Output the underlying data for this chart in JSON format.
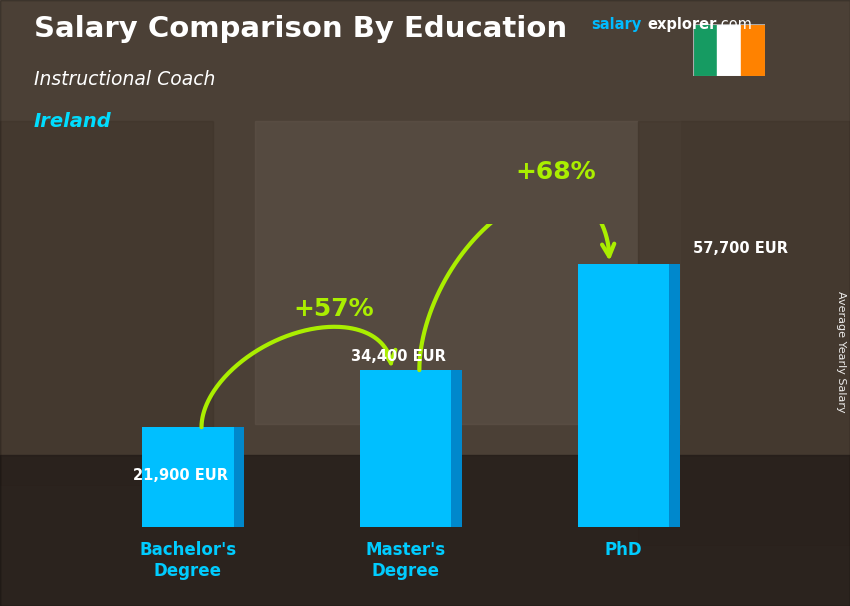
{
  "title": "Salary Comparison By Education",
  "subtitle": "Instructional Coach",
  "country": "Ireland",
  "ylabel": "Average Yearly Salary",
  "categories": [
    "Bachelor's\nDegree",
    "Master's\nDegree",
    "PhD"
  ],
  "values": [
    21900,
    34400,
    57700
  ],
  "value_labels": [
    "21,900 EUR",
    "34,400 EUR",
    "57,700 EUR"
  ],
  "pct_labels": [
    "+57%",
    "+68%"
  ],
  "bar_color_face": "#00BFFF",
  "bar_color_dark": "#0088CC",
  "bar_color_top": "#55DDFF",
  "title_color": "#FFFFFF",
  "subtitle_color": "#FFFFFF",
  "country_color": "#00DDFF",
  "pct_color": "#AAEE00",
  "value_color": "#FFFFFF",
  "background_color": "#6B5A4E",
  "flag_green": "#169B62",
  "flag_white": "#FFFFFF",
  "flag_orange": "#FF8200"
}
